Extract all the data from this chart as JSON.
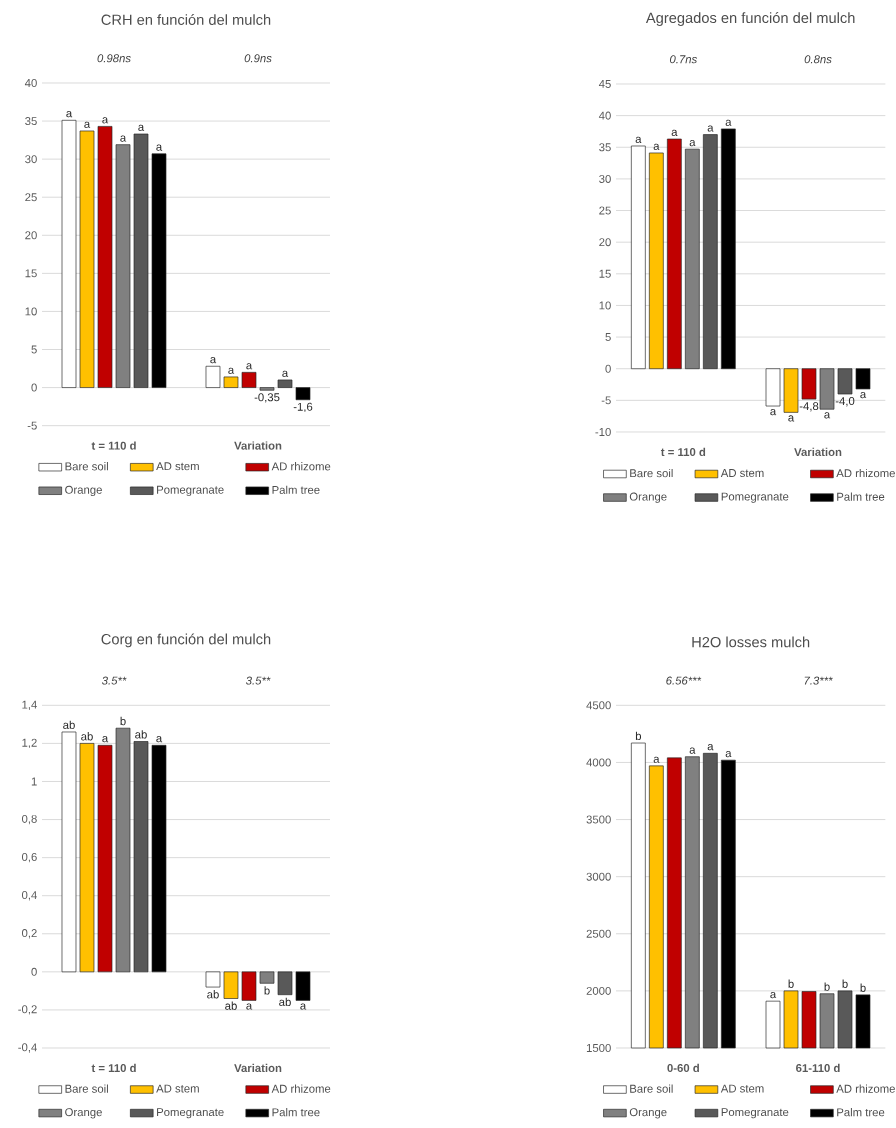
{
  "chart_data": [
    {
      "type": "bar",
      "title": "CRH en función del mulch",
      "categories": [
        "t = 110 d",
        "Variation"
      ],
      "annotations": [
        "0.98ns",
        "0.9ns"
      ],
      "ylim": [
        -5,
        40
      ],
      "yticks": [
        -5,
        0,
        5,
        10,
        15,
        20,
        25,
        30,
        35,
        40
      ],
      "grid": "y",
      "legend": "bottom",
      "series": [
        {
          "name": "Bare soil",
          "color": "#ffffff",
          "values": [
            35.1,
            2.8
          ],
          "value_labels": [
            "a",
            "a"
          ]
        },
        {
          "name": "AD stem",
          "color": "#ffc000",
          "values": [
            33.7,
            1.4
          ],
          "value_labels": [
            "a",
            "a"
          ]
        },
        {
          "name": "AD rhizome",
          "color": "#c00000",
          "values": [
            34.3,
            2.0
          ],
          "value_labels": [
            "a",
            "a"
          ]
        },
        {
          "name": "Orange",
          "color": "#808080",
          "values": [
            31.9,
            -0.35
          ],
          "value_labels": [
            "a",
            "-0,35"
          ]
        },
        {
          "name": "Pomegranate",
          "color": "#595959",
          "values": [
            33.3,
            1.0
          ],
          "value_labels": [
            "a",
            "a"
          ]
        },
        {
          "name": "Palm tree",
          "color": "#000000",
          "values": [
            30.7,
            -1.6
          ],
          "value_labels": [
            "a",
            "-1,6"
          ]
        }
      ]
    },
    {
      "type": "bar",
      "title": "Agregados en función del mulch",
      "categories": [
        "t = 110 d",
        "Variation"
      ],
      "annotations": [
        "0.7ns",
        "0.8ns"
      ],
      "ylim": [
        -10,
        45
      ],
      "yticks": [
        -10,
        -5,
        0,
        5,
        10,
        15,
        20,
        25,
        30,
        35,
        40,
        45
      ],
      "grid": "y",
      "legend": "bottom",
      "series": [
        {
          "name": "Bare soil",
          "color": "#ffffff",
          "values": [
            35.2,
            -5.9
          ],
          "value_labels": [
            "a",
            "a"
          ]
        },
        {
          "name": "AD stem",
          "color": "#ffc000",
          "values": [
            34.1,
            -6.9
          ],
          "value_labels": [
            "a",
            "a"
          ]
        },
        {
          "name": "AD rhizome",
          "color": "#c00000",
          "values": [
            36.3,
            -4.8
          ],
          "value_labels": [
            "a",
            "-4,8"
          ]
        },
        {
          "name": "Orange",
          "color": "#808080",
          "values": [
            34.7,
            -6.4
          ],
          "value_labels": [
            "a",
            "a"
          ]
        },
        {
          "name": "Pomegranate",
          "color": "#595959",
          "values": [
            37.0,
            -4.0
          ],
          "value_labels": [
            "a",
            "-4,0"
          ]
        },
        {
          "name": "Palm tree",
          "color": "#000000",
          "values": [
            37.9,
            -3.2
          ],
          "value_labels": [
            "a",
            "a"
          ]
        }
      ]
    },
    {
      "type": "bar",
      "title": "Corg en función del mulch",
      "categories": [
        "t = 110 d",
        "Variation"
      ],
      "annotations": [
        "3.5**",
        "3.5**"
      ],
      "ylim": [
        -0.4,
        1.4
      ],
      "yticks": [
        {
          "value": -0.4,
          "label": "-0,4"
        },
        {
          "value": -0.2,
          "label": "-0,2"
        },
        0,
        {
          "value": 0.2,
          "label": "0,2"
        },
        {
          "value": 0.4,
          "label": "0,4"
        },
        {
          "value": 0.6,
          "label": "0,6"
        },
        {
          "value": 0.8,
          "label": "0,8"
        },
        1,
        {
          "value": 1.2,
          "label": "1,2"
        },
        {
          "value": 1.4,
          "label": "1,4"
        }
      ],
      "grid": "y",
      "legend": "bottom",
      "series": [
        {
          "name": "Bare soil",
          "color": "#ffffff",
          "values": [
            1.26,
            -0.08
          ],
          "value_labels": [
            "ab",
            "ab"
          ]
        },
        {
          "name": "AD stem",
          "color": "#ffc000",
          "values": [
            1.2,
            -0.14
          ],
          "value_labels": [
            "ab",
            "ab"
          ]
        },
        {
          "name": "AD rhizome",
          "color": "#c00000",
          "values": [
            1.19,
            -0.15
          ],
          "value_labels": [
            "a",
            "a"
          ]
        },
        {
          "name": "Orange",
          "color": "#808080",
          "values": [
            1.28,
            -0.06
          ],
          "value_labels": [
            "b",
            "b"
          ]
        },
        {
          "name": "Pomegranate",
          "color": "#595959",
          "values": [
            1.21,
            -0.12
          ],
          "value_labels": [
            "ab",
            "ab"
          ]
        },
        {
          "name": "Palm tree",
          "color": "#000000",
          "values": [
            1.19,
            -0.15
          ],
          "value_labels": [
            "a",
            "a"
          ]
        }
      ]
    },
    {
      "type": "bar",
      "title": "H2O losses mulch",
      "categories": [
        "0-60 d",
        "61-110 d"
      ],
      "annotations": [
        "6.56***",
        "7.3***"
      ],
      "ylim": [
        1500,
        4500
      ],
      "yticks": [
        1500,
        2000,
        2500,
        3000,
        3500,
        4000,
        4500
      ],
      "grid": "y",
      "legend": "bottom",
      "series": [
        {
          "name": "Bare soil",
          "color": "#ffffff",
          "values": [
            4170,
            1910
          ],
          "value_labels": [
            "b",
            "a"
          ]
        },
        {
          "name": "AD stem",
          "color": "#ffc000",
          "values": [
            3970,
            2000
          ],
          "value_labels": [
            "a",
            "b"
          ]
        },
        {
          "name": "AD rhizome",
          "color": "#c00000",
          "values": [
            4040,
            1995
          ],
          "value_labels": [
            null,
            null
          ]
        },
        {
          "name": "Orange",
          "color": "#808080",
          "values": [
            4050,
            1975
          ],
          "value_labels": [
            "a",
            "b"
          ]
        },
        {
          "name": "Pomegranate",
          "color": "#595959",
          "values": [
            4080,
            2000
          ],
          "value_labels": [
            "a",
            "b"
          ]
        },
        {
          "name": "Palm tree",
          "color": "#000000",
          "values": [
            4020,
            1965
          ],
          "value_labels": [
            "a",
            "b"
          ]
        }
      ]
    }
  ]
}
